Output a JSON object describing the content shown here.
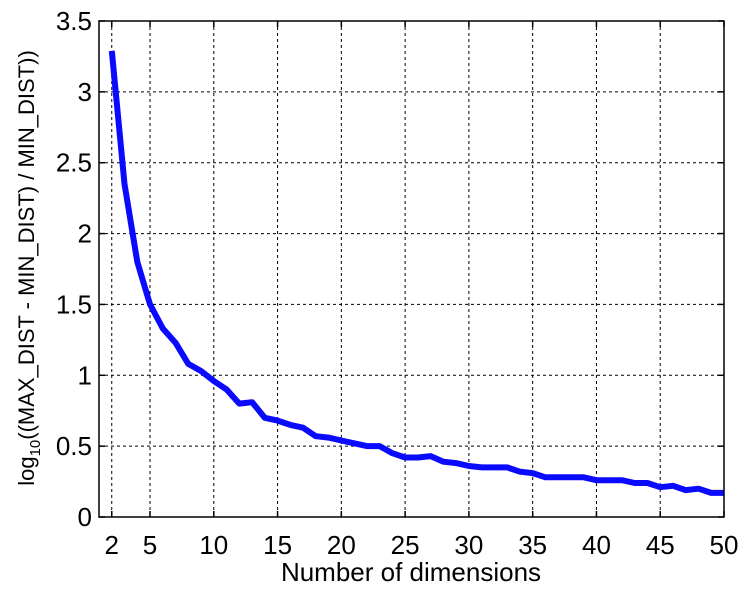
{
  "chart_data": {
    "type": "line",
    "title": "",
    "xlabel": "Number of dimensions",
    "ylabel_prefix": "log",
    "ylabel_subscript": "10",
    "ylabel_rest": "((MAX_DIST - MIN_DIST) / MIN_DIST))",
    "xlim": [
      1,
      50
    ],
    "ylim": [
      0,
      3.5
    ],
    "xticks": [
      2,
      5,
      10,
      15,
      20,
      25,
      30,
      35,
      40,
      45,
      50
    ],
    "yticks": [
      0,
      0.5,
      1,
      1.5,
      2,
      2.5,
      3,
      3.5
    ],
    "xtick_labels": [
      "2",
      "5",
      "10",
      "15",
      "20",
      "25",
      "30",
      "35",
      "40",
      "45",
      "50"
    ],
    "ytick_labels": [
      "0",
      "0.5",
      "1",
      "1.5",
      "2",
      "2.5",
      "3",
      "3.5"
    ],
    "grid": true,
    "colors": {
      "line": "#0a0aff",
      "axis": "#000000",
      "grid": "#000000"
    },
    "series": [
      {
        "x": [
          2,
          3,
          4,
          5,
          6,
          7,
          8,
          9,
          10,
          11,
          12,
          13,
          14,
          15,
          16,
          17,
          18,
          19,
          20,
          21,
          22,
          23,
          24,
          25,
          26,
          27,
          28,
          29,
          30,
          31,
          32,
          33,
          34,
          35,
          36,
          37,
          38,
          39,
          40,
          41,
          42,
          43,
          44,
          45,
          46,
          47,
          48,
          49,
          50
        ],
        "values": [
          3.29,
          2.35,
          1.8,
          1.5,
          1.33,
          1.23,
          1.08,
          1.03,
          0.96,
          0.9,
          0.8,
          0.81,
          0.7,
          0.68,
          0.65,
          0.63,
          0.57,
          0.56,
          0.54,
          0.52,
          0.5,
          0.5,
          0.45,
          0.42,
          0.42,
          0.43,
          0.39,
          0.38,
          0.36,
          0.35,
          0.35,
          0.35,
          0.32,
          0.31,
          0.28,
          0.28,
          0.28,
          0.28,
          0.26,
          0.26,
          0.26,
          0.24,
          0.24,
          0.21,
          0.22,
          0.19,
          0.2,
          0.17,
          0.17
        ]
      }
    ]
  }
}
